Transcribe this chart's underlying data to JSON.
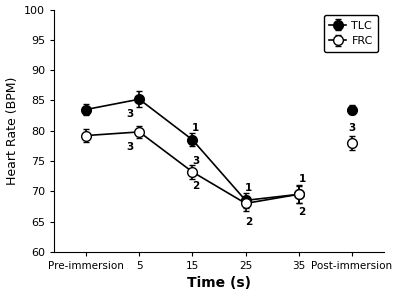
{
  "x_labels": [
    "Pre-immersion",
    "5",
    "15",
    "25",
    "35",
    "Post-immersion"
  ],
  "x_positions": [
    0,
    1,
    2,
    3,
    4,
    5
  ],
  "tlc_values": [
    83.5,
    85.2,
    78.5,
    68.5,
    69.5,
    83.5
  ],
  "tlc_errors": [
    0.9,
    1.3,
    1.1,
    1.2,
    1.5,
    0.8
  ],
  "frc_values": [
    79.2,
    79.8,
    73.2,
    68.0,
    69.5,
    78.0
  ],
  "frc_errors": [
    1.1,
    1.0,
    1.2,
    1.3,
    1.4,
    1.2
  ],
  "tlc_annot_text": [
    "",
    "3",
    "1",
    "1",
    "1",
    "3"
  ],
  "tlc_annot_dx": [
    0,
    -0.18,
    0.06,
    0.06,
    0.06,
    0
  ],
  "tlc_annot_dy": [
    0,
    -2.5,
    2.0,
    2.0,
    2.5,
    -3.0
  ],
  "frc_annot1_text": [
    "",
    "3",
    "3",
    "2",
    "2",
    ""
  ],
  "frc_annot1_dx": [
    0,
    -0.18,
    0.06,
    0.06,
    0.06,
    0
  ],
  "frc_annot1_dy": [
    0,
    -2.5,
    1.8,
    -3.0,
    -3.0,
    0
  ],
  "frc_annot2_text": [
    "",
    "",
    "2",
    "",
    "",
    ""
  ],
  "frc_annot2_dx": [
    0,
    0,
    0.06,
    0,
    0,
    0
  ],
  "frc_annot2_dy": [
    0,
    0,
    -1.5,
    0,
    0,
    0
  ],
  "ylabel": "Heart Rate (BPM)",
  "xlabel": "Time (s)",
  "ylim": [
    60,
    100
  ],
  "yticks": [
    60,
    65,
    70,
    75,
    80,
    85,
    90,
    95,
    100
  ],
  "legend_labels": [
    "TLC",
    "FRC"
  ]
}
